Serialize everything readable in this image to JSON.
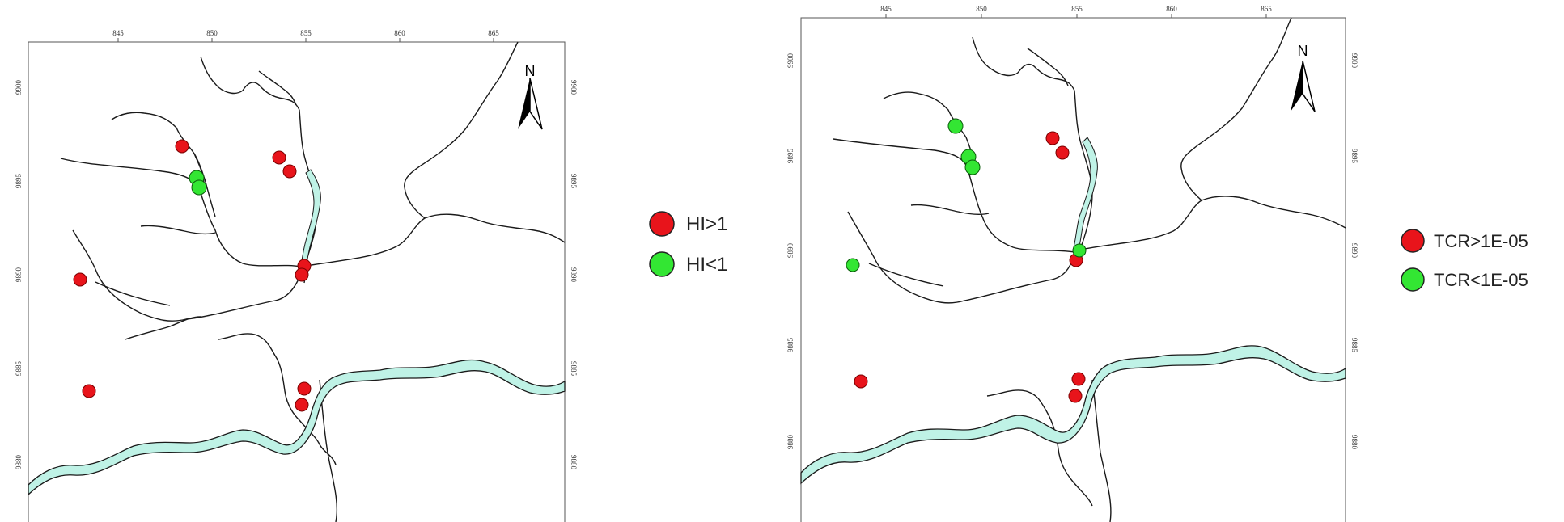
{
  "maps": [
    {
      "id": "hi",
      "x_ticks": [
        "845",
        "850",
        "855",
        "860",
        "865"
      ],
      "y_ticks": [
        "9900",
        "9895",
        "9890",
        "9885",
        "9880"
      ],
      "north_label": "N",
      "legend": [
        {
          "label": "HI>1",
          "color": "#e8141b"
        },
        {
          "label": "HI<1",
          "color": "#33e633"
        }
      ]
    },
    {
      "id": "tcr",
      "x_ticks": [
        "845",
        "850",
        "855",
        "860",
        "865"
      ],
      "y_ticks": [
        "9900",
        "9895",
        "9890",
        "9885",
        "9880"
      ],
      "north_label": "N",
      "legend": [
        {
          "label": "TCR>1E-05",
          "color": "#e8141b"
        },
        {
          "label": "TCR<1E-05",
          "color": "#33e633"
        }
      ]
    }
  ],
  "colors": {
    "river_fill": "#bff2e6",
    "river_line": "#1a1a1a",
    "frame": "#555555"
  }
}
